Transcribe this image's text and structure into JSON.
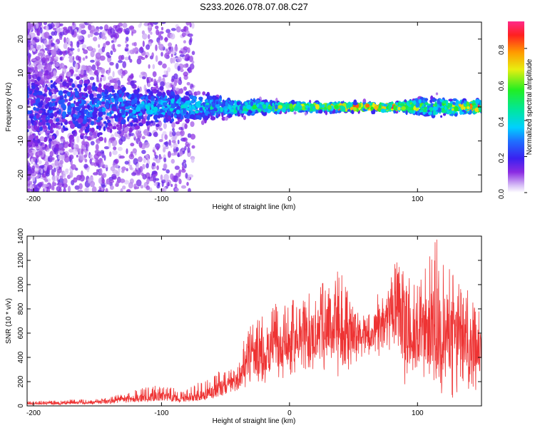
{
  "title": "S233.2026.078.07.08.C27",
  "chart_data": [
    {
      "type": "heatmap",
      "description_level": "spectrogram",
      "xlabel": "Height of straight line (km)",
      "ylabel": "Frequency (Hz)",
      "xlim": [
        -205,
        150
      ],
      "ylim": [
        -25,
        25
      ],
      "xticks": [
        -200,
        -100,
        0,
        100
      ],
      "yticks": [
        -20,
        -10,
        0,
        10,
        20
      ],
      "colorbar": {
        "label": "Normalized spectral amplitude",
        "range": [
          0.0,
          0.95
        ],
        "ticks": [
          0.0,
          0.2,
          0.4,
          0.6,
          0.8
        ],
        "tick_labels": [
          "0.0",
          "0.2",
          "0.4",
          "0.6",
          "0.8"
        ],
        "colormap": "rainbow"
      },
      "ridge": {
        "frequency_hz": 0,
        "description": "Strong amplitude band near 0 Hz from about -130 km to 150 km; diffuse low-amplitude scatter spanning all frequencies for heights below -100 km",
        "strength_profile": [
          {
            "x": -205,
            "peak": 0.25,
            "spread_hz": 25
          },
          {
            "x": -130,
            "peak": 0.35,
            "spread_hz": 12
          },
          {
            "x": -60,
            "peak": 0.45,
            "spread_hz": 6
          },
          {
            "x": -20,
            "peak": 0.6,
            "spread_hz": 3
          },
          {
            "x": 0,
            "peak": 0.65,
            "spread_hz": 2.5
          },
          {
            "x": 45,
            "peak": 0.9,
            "spread_hz": 2
          },
          {
            "x": 85,
            "peak": 0.9,
            "spread_hz": 2
          },
          {
            "x": 110,
            "peak": 0.55,
            "spread_hz": 5
          },
          {
            "x": 145,
            "peak": 0.9,
            "spread_hz": 3
          }
        ]
      }
    },
    {
      "type": "line",
      "xlabel": "Height of straight line (km)",
      "ylabel": "SNR (10 * v/v)",
      "xlim": [
        -205,
        150
      ],
      "ylim": [
        0,
        1400
      ],
      "xticks": [
        -200,
        -100,
        0,
        100
      ],
      "yticks": [
        0,
        200,
        400,
        600,
        800,
        1000,
        1200,
        1400
      ],
      "color": "#ee3333",
      "series": [
        {
          "name": "SNR",
          "x": [
            -205,
            -180,
            -150,
            -130,
            -115,
            -100,
            -85,
            -70,
            -60,
            -50,
            -40,
            -35,
            -30,
            -20,
            -10,
            0,
            10,
            20,
            30,
            38,
            42,
            50,
            60,
            70,
            78,
            82,
            90,
            100,
            110,
            115,
            125,
            135,
            145,
            150
          ],
          "envelope_max": [
            40,
            50,
            60,
            100,
            150,
            180,
            130,
            200,
            260,
            320,
            350,
            580,
            680,
            750,
            850,
            880,
            860,
            1000,
            1100,
            1190,
            1050,
            800,
            760,
            950,
            1150,
            1230,
            1100,
            1000,
            1250,
            1400,
            1150,
            1000,
            900,
            750
          ],
          "envelope_min": [
            10,
            10,
            15,
            20,
            30,
            40,
            30,
            40,
            60,
            80,
            100,
            150,
            200,
            150,
            200,
            250,
            280,
            280,
            300,
            150,
            200,
            350,
            380,
            400,
            450,
            350,
            150,
            300,
            150,
            100,
            50,
            60,
            80,
            300
          ],
          "typical": [
            20,
            25,
            30,
            50,
            70,
            80,
            60,
            90,
            120,
            160,
            200,
            350,
            400,
            420,
            480,
            520,
            550,
            600,
            650,
            680,
            550,
            560,
            580,
            650,
            780,
            820,
            600,
            600,
            620,
            650,
            600,
            550,
            500,
            500
          ]
        }
      ]
    }
  ]
}
